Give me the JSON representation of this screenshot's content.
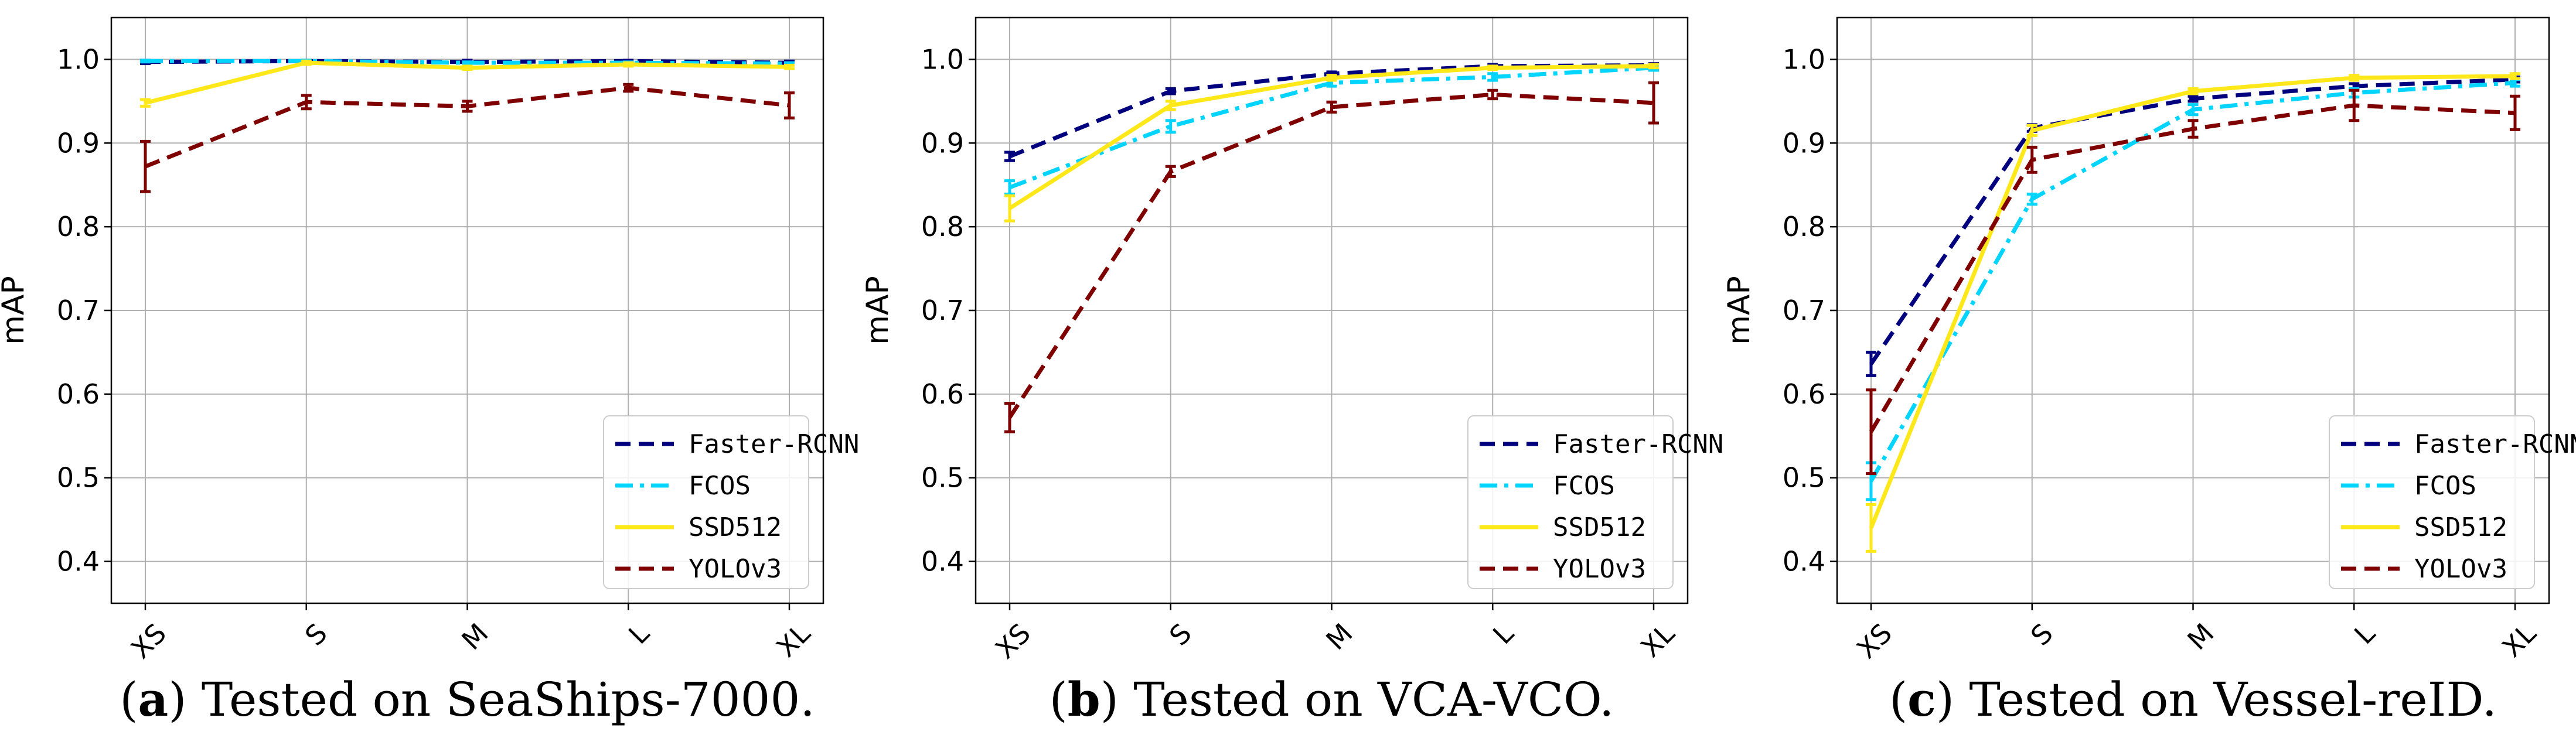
{
  "chart_data": [
    {
      "type": "line",
      "panel_letter": "a",
      "caption": "Tested on SeaShips-7000.",
      "categories": [
        "XS",
        "S",
        "M",
        "L",
        "XL"
      ],
      "xlabel": "",
      "ylabel": "mAP",
      "ylim": [
        0.35,
        1.05
      ],
      "yticks": [
        "0.4",
        "0.5",
        "0.6",
        "0.7",
        "0.8",
        "0.9",
        "1.0"
      ],
      "grid": true,
      "legend_position": "lower-right",
      "series": [
        {
          "name": "Faster-RCNN",
          "color": "#00007f",
          "dash": "dashed",
          "values": [
            0.997,
            0.998,
            0.997,
            0.998,
            0.996
          ],
          "errors": [
            0.002,
            0.001,
            0.002,
            0.001,
            0.002
          ]
        },
        {
          "name": "FCOS",
          "color": "#00d4ff",
          "dash": "dashdot",
          "values": [
            0.998,
            0.998,
            0.996,
            0.996,
            0.995
          ],
          "errors": [
            0.001,
            0.001,
            0.001,
            0.001,
            0.001
          ]
        },
        {
          "name": "SSD512",
          "color": "#ffe81a",
          "dash": "solid",
          "values": [
            0.948,
            0.996,
            0.99,
            0.994,
            0.991
          ],
          "errors": [
            0.004,
            0.002,
            0.002,
            0.002,
            0.002
          ]
        },
        {
          "name": "YOLOv3",
          "color": "#7f0000",
          "dash": "dashed",
          "values": [
            0.872,
            0.949,
            0.944,
            0.966,
            0.945
          ],
          "errors": [
            0.03,
            0.008,
            0.006,
            0.004,
            0.015
          ]
        }
      ]
    },
    {
      "type": "line",
      "panel_letter": "b",
      "caption": "Tested on VCA-VCO.",
      "categories": [
        "XS",
        "S",
        "M",
        "L",
        "XL"
      ],
      "xlabel": "",
      "ylabel": "mAP",
      "ylim": [
        0.35,
        1.05
      ],
      "yticks": [
        "0.4",
        "0.5",
        "0.6",
        "0.7",
        "0.8",
        "0.9",
        "1.0"
      ],
      "grid": true,
      "legend_position": "lower-right",
      "series": [
        {
          "name": "Faster-RCNN",
          "color": "#00007f",
          "dash": "dashed",
          "values": [
            0.884,
            0.962,
            0.983,
            0.992,
            0.993
          ],
          "errors": [
            0.005,
            0.003,
            0.002,
            0.002,
            0.002
          ]
        },
        {
          "name": "FCOS",
          "color": "#00d4ff",
          "dash": "dashdot",
          "values": [
            0.847,
            0.92,
            0.972,
            0.979,
            0.99
          ],
          "errors": [
            0.008,
            0.007,
            0.004,
            0.004,
            0.003
          ]
        },
        {
          "name": "SSD512",
          "color": "#ffe81a",
          "dash": "solid",
          "values": [
            0.822,
            0.945,
            0.978,
            0.99,
            0.992
          ],
          "errors": [
            0.015,
            0.005,
            0.003,
            0.002,
            0.002
          ]
        },
        {
          "name": "YOLOv3",
          "color": "#7f0000",
          "dash": "dashed",
          "values": [
            0.572,
            0.866,
            0.943,
            0.958,
            0.948
          ],
          "errors": [
            0.017,
            0.006,
            0.006,
            0.005,
            0.024
          ]
        }
      ]
    },
    {
      "type": "line",
      "panel_letter": "c",
      "caption": "Tested on Vessel-reID.",
      "categories": [
        "XS",
        "S",
        "M",
        "L",
        "XL"
      ],
      "xlabel": "",
      "ylabel": "mAP",
      "ylim": [
        0.35,
        1.05
      ],
      "yticks": [
        "0.4",
        "0.5",
        "0.6",
        "0.7",
        "0.8",
        "0.9",
        "1.0"
      ],
      "grid": true,
      "legend_position": "lower-right",
      "series": [
        {
          "name": "Faster-RCNN",
          "color": "#00007f",
          "dash": "dashed",
          "values": [
            0.636,
            0.918,
            0.953,
            0.968,
            0.976
          ],
          "errors": [
            0.014,
            0.004,
            0.003,
            0.003,
            0.003
          ]
        },
        {
          "name": "FCOS",
          "color": "#00d4ff",
          "dash": "dashdot",
          "values": [
            0.496,
            0.833,
            0.94,
            0.96,
            0.972
          ],
          "errors": [
            0.022,
            0.006,
            0.006,
            0.005,
            0.004
          ]
        },
        {
          "name": "SSD512",
          "color": "#ffe81a",
          "dash": "solid",
          "values": [
            0.44,
            0.915,
            0.962,
            0.978,
            0.98
          ],
          "errors": [
            0.028,
            0.006,
            0.003,
            0.003,
            0.003
          ]
        },
        {
          "name": "YOLOv3",
          "color": "#7f0000",
          "dash": "dashed",
          "values": [
            0.555,
            0.88,
            0.917,
            0.945,
            0.936
          ],
          "errors": [
            0.05,
            0.015,
            0.01,
            0.018,
            0.02
          ]
        }
      ]
    }
  ]
}
